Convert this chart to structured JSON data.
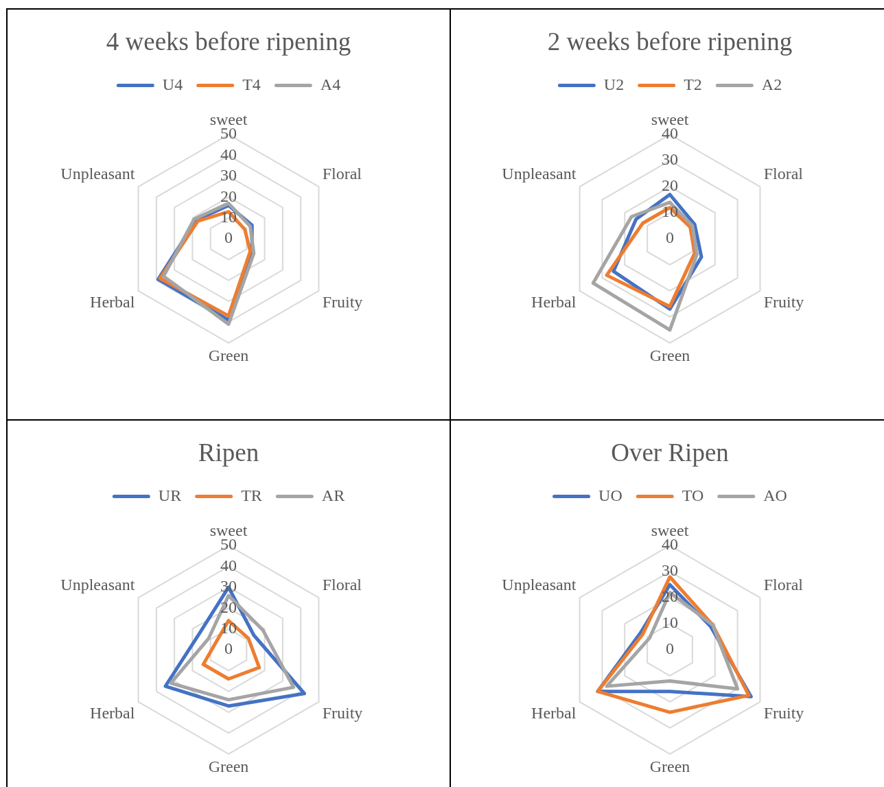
{
  "chart_data": [
    {
      "type": "radar",
      "title": "4 weeks before ripening",
      "categories": [
        "sweet",
        "Floral",
        "Fruity",
        "Green",
        "Herbal",
        "Unpleasant"
      ],
      "series": [
        {
          "name": "U4",
          "color": "#4472c4",
          "values": [
            16,
            13,
            13,
            39,
            39,
            18
          ]
        },
        {
          "name": "T4",
          "color": "#ed7d31",
          "values": [
            13,
            9,
            12,
            37,
            38,
            17
          ]
        },
        {
          "name": "A4",
          "color": "#a5a5a5",
          "values": [
            17,
            12,
            14,
            41,
            36,
            19
          ]
        }
      ],
      "ylim": [
        0,
        50
      ],
      "yticks": [
        0,
        10,
        20,
        30,
        40,
        50
      ],
      "grid": true,
      "legend": "top",
      "marker": "none"
    },
    {
      "type": "radar",
      "title": "2 weeks before ripening",
      "categories": [
        "sweet",
        "Floral",
        "Fruity",
        "Green",
        "Herbal",
        "Unpleasant"
      ],
      "series": [
        {
          "name": "U2",
          "color": "#4472c4",
          "values": [
            17,
            11,
            14,
            27,
            25,
            15
          ]
        },
        {
          "name": "T2",
          "color": "#ed7d31",
          "values": [
            12,
            9,
            11,
            26,
            28,
            12
          ]
        },
        {
          "name": "A2",
          "color": "#a5a5a5",
          "values": [
            14,
            10,
            12,
            35,
            34,
            17
          ]
        }
      ],
      "ylim": [
        0,
        40
      ],
      "yticks": [
        0,
        10,
        20,
        30,
        40
      ],
      "grid": true,
      "legend": "top",
      "marker": "none"
    },
    {
      "type": "radar",
      "title": "Ripen",
      "categories": [
        "sweet",
        "Floral",
        "Fruity",
        "Green",
        "Herbal",
        "Unpleasant"
      ],
      "series": [
        {
          "name": "UR",
          "color": "#4472c4",
          "values": [
            30,
            14,
            42,
            27,
            35,
            16
          ]
        },
        {
          "name": "TR",
          "color": "#ed7d31",
          "values": [
            14,
            11,
            17,
            14,
            14,
            7
          ]
        },
        {
          "name": "AR",
          "color": "#a5a5a5",
          "values": [
            26,
            19,
            36,
            24,
            32,
            11
          ]
        }
      ],
      "ylim": [
        0,
        50
      ],
      "yticks": [
        0,
        10,
        20,
        30,
        40,
        50
      ],
      "grid": true,
      "legend": "top",
      "marker": "none"
    },
    {
      "type": "radar",
      "title": "Over Ripen",
      "categories": [
        "sweet",
        "Floral",
        "Fruity",
        "Green",
        "Herbal",
        "Unpleasant"
      ],
      "series": [
        {
          "name": "UO",
          "color": "#4472c4",
          "values": [
            25,
            18,
            36,
            16,
            32,
            13
          ]
        },
        {
          "name": "TO",
          "color": "#ed7d31",
          "values": [
            28,
            19,
            35,
            24,
            32,
            12
          ]
        },
        {
          "name": "AO",
          "color": "#a5a5a5",
          "values": [
            22,
            19,
            30,
            12,
            28,
            9
          ]
        }
      ],
      "ylim": [
        0,
        40
      ],
      "yticks": [
        0,
        10,
        20,
        30,
        40
      ],
      "grid": true,
      "legend": "top",
      "marker": "none"
    }
  ]
}
